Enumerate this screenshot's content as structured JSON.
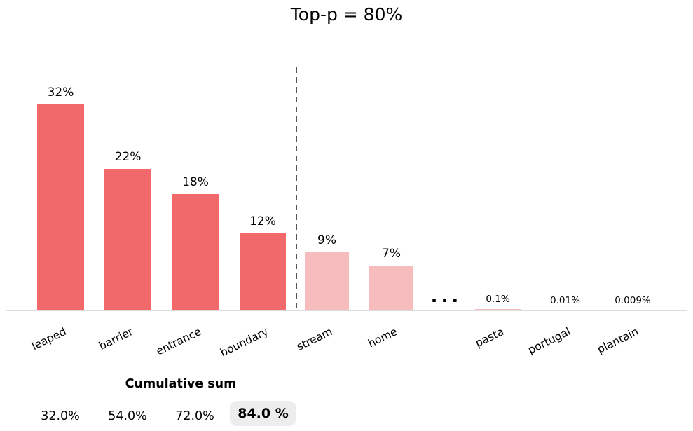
{
  "title": "Top-p = 80%",
  "chart_data": {
    "type": "bar",
    "title": "Top-p = 80%",
    "categories": [
      "leaped",
      "barrier",
      "entrance",
      "boundary",
      "stream",
      "home",
      "pasta",
      "portugal",
      "plantain"
    ],
    "values": [
      32,
      22,
      18,
      12,
      9,
      7,
      0.1,
      0.01,
      0.009
    ],
    "value_labels": [
      "32%",
      "22%",
      "18%",
      "12%",
      "9%",
      "7%",
      "0.1%",
      "0.01%",
      "0.009%"
    ],
    "in_nucleus": [
      true,
      true,
      true,
      true,
      false,
      false,
      false,
      false,
      false
    ],
    "cutoff_after": "boundary",
    "ellipsis": "...",
    "ellipsis_between": [
      "home",
      "pasta"
    ],
    "xlabel": "",
    "ylabel": "",
    "ylim": [
      0,
      35
    ],
    "grid": false,
    "legend": null,
    "bar_color_nucleus": "#F2696B",
    "bar_color_tail": "#F6BCBE",
    "cutoff_line_color": "#555555",
    "axis_line_color": "#DCDCDC"
  },
  "cumulative": {
    "heading": "Cumulative sum",
    "values": [
      "32.0%",
      "54.0%",
      "72.0%"
    ],
    "highlight_value": "84.0 %",
    "highlight_bg": "#EDEDED"
  }
}
